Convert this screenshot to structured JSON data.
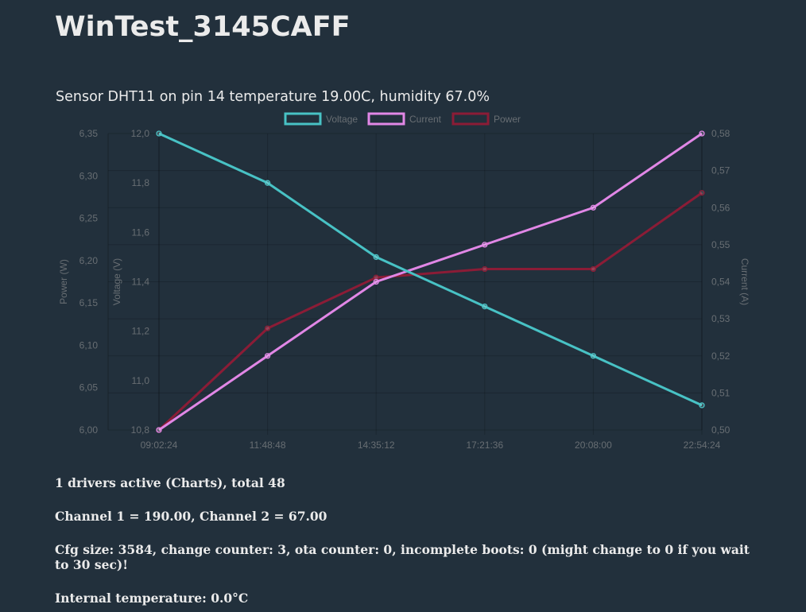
{
  "header": {
    "title": "WinTest_3145CAFF"
  },
  "chart_data": {
    "type": "line",
    "title": "Sensor DHT11 on pin 14 temperature 19.00C, humidity 67.0%",
    "categories": [
      "09:02:24",
      "11:48:48",
      "14:35:12",
      "17:21:36",
      "20:08:00",
      "22:54:24"
    ],
    "legend_position": "top-center",
    "grid": true,
    "series": [
      {
        "name": "Voltage",
        "axis": "voltage",
        "color": "#48c2c5",
        "values": [
          12.0,
          11.8,
          11.5,
          11.3,
          11.1,
          10.9
        ]
      },
      {
        "name": "Current",
        "axis": "current",
        "color": "#e187e6",
        "values": [
          0.5,
          0.52,
          0.54,
          0.55,
          0.56,
          0.58
        ]
      },
      {
        "name": "Power",
        "axis": "power",
        "color": "#8b1c36",
        "values": [
          6.0,
          6.12,
          6.18,
          6.19,
          6.19,
          6.28
        ]
      }
    ],
    "axes": {
      "power": {
        "label": "Power (W)",
        "position": "left-outer",
        "range": [
          6.0,
          6.35
        ],
        "ticks": [
          "6,00",
          "6,05",
          "6,10",
          "6,15",
          "6,20",
          "6,25",
          "6,30",
          "6,35"
        ]
      },
      "voltage": {
        "label": "Voltage (V)",
        "position": "left-inner",
        "range": [
          10.8,
          12.0
        ],
        "ticks": [
          "10,8",
          "11,0",
          "11,2",
          "11,4",
          "11,6",
          "11,8",
          "12,0"
        ]
      },
      "current": {
        "label": "Current (A)",
        "position": "right",
        "range": [
          0.5,
          0.58
        ],
        "ticks": [
          "0,50",
          "0,51",
          "0,52",
          "0,53",
          "0,54",
          "0,55",
          "0,56",
          "0,57",
          "0,58"
        ]
      }
    }
  },
  "info": {
    "drivers": "1 drivers active (Charts), total 48",
    "channels": "Channel 1 = 190.00, Channel 2 = 67.00",
    "cfg": "Cfg size: 3584, change counter: 3, ota counter: 0, incomplete boots: 0 (might change to 0 if you wait to 30 sec)!",
    "internal_temp": "Internal temperature: 0.0°C"
  }
}
